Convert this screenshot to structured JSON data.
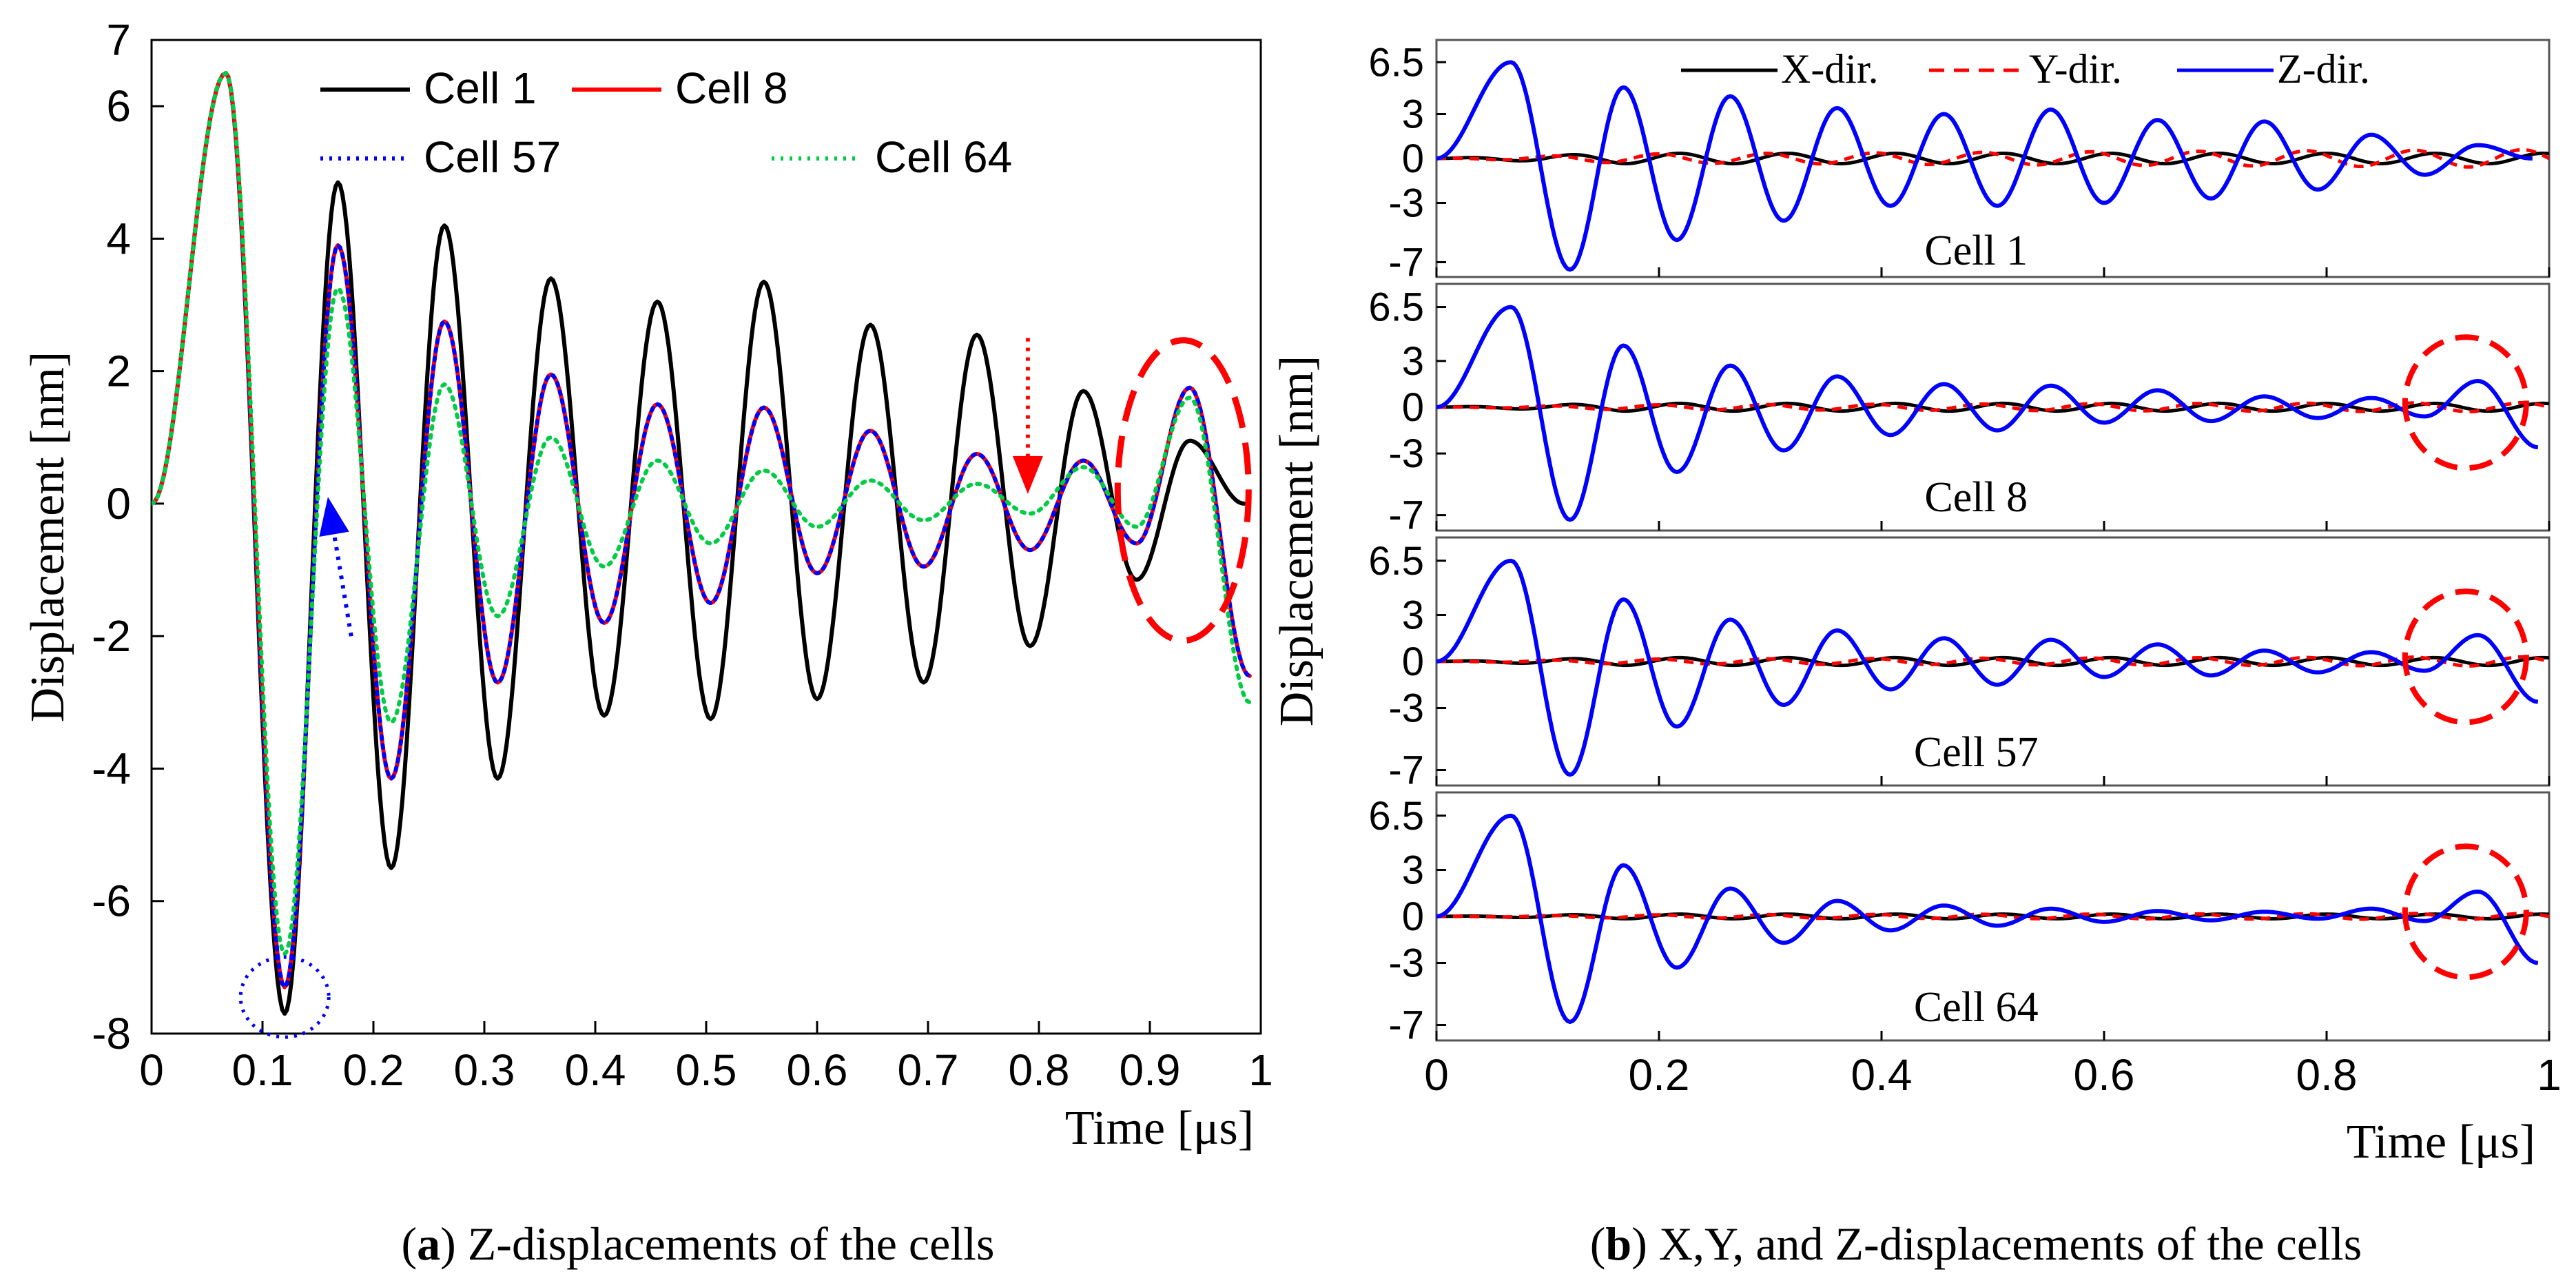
{
  "chart_data": [
    {
      "type": "line",
      "panel": "a",
      "caption_label": "a",
      "caption_text": ") Z-displacements of the cells",
      "xlabel": "Time [μs]",
      "ylabel": "Displacement [nm]",
      "xlim": [
        0,
        1
      ],
      "ylim": [
        -8,
        7
      ],
      "xticks": [
        "0",
        "0.1",
        "0.2",
        "0.3",
        "0.4",
        "0.5",
        "0.6",
        "0.7",
        "0.8",
        "0.9",
        "1"
      ],
      "yticks": [
        "-8",
        "-6",
        "-4",
        "-2",
        "0",
        "2",
        "4",
        "6",
        "7"
      ],
      "legend_position": "top",
      "series": [
        {
          "name": "Cell 1",
          "color": "#000000",
          "style": "solid",
          "peaks": [
            [
              0,
              0
            ],
            [
              0.067,
              6.5
            ],
            [
              0.12,
              -7.7
            ],
            [
              0.168,
              4.85
            ],
            [
              0.216,
              -5.5
            ],
            [
              0.264,
              4.2
            ],
            [
              0.312,
              -4.15
            ],
            [
              0.36,
              3.4
            ],
            [
              0.408,
              -3.2
            ],
            [
              0.456,
              3.05
            ],
            [
              0.504,
              -3.25
            ],
            [
              0.552,
              3.35
            ],
            [
              0.6,
              -2.95
            ],
            [
              0.648,
              2.7
            ],
            [
              0.696,
              -2.7
            ],
            [
              0.744,
              2.55
            ],
            [
              0.792,
              -2.15
            ],
            [
              0.84,
              1.7
            ],
            [
              0.888,
              -1.15
            ],
            [
              0.936,
              0.95
            ],
            [
              0.985,
              0.0
            ]
          ]
        },
        {
          "name": "Cell 8",
          "color": "#ff0000",
          "style": "solid",
          "peaks": [
            [
              0,
              0
            ],
            [
              0.067,
              6.5
            ],
            [
              0.12,
              -7.3
            ],
            [
              0.168,
              3.9
            ],
            [
              0.216,
              -4.15
            ],
            [
              0.264,
              2.75
            ],
            [
              0.312,
              -2.7
            ],
            [
              0.36,
              1.95
            ],
            [
              0.408,
              -1.8
            ],
            [
              0.456,
              1.5
            ],
            [
              0.504,
              -1.5
            ],
            [
              0.552,
              1.45
            ],
            [
              0.6,
              -1.05
            ],
            [
              0.648,
              1.1
            ],
            [
              0.696,
              -0.95
            ],
            [
              0.744,
              0.75
            ],
            [
              0.792,
              -0.7
            ],
            [
              0.84,
              0.65
            ],
            [
              0.888,
              -0.6
            ],
            [
              0.936,
              1.75
            ],
            [
              0.99,
              -2.6
            ]
          ]
        },
        {
          "name": "Cell 57",
          "color": "#0000ff",
          "style": "dotted",
          "peaks": [
            [
              0,
              0
            ],
            [
              0.067,
              6.5
            ],
            [
              0.12,
              -7.3
            ],
            [
              0.168,
              3.9
            ],
            [
              0.216,
              -4.15
            ],
            [
              0.264,
              2.75
            ],
            [
              0.312,
              -2.7
            ],
            [
              0.36,
              1.95
            ],
            [
              0.408,
              -1.8
            ],
            [
              0.456,
              1.5
            ],
            [
              0.504,
              -1.5
            ],
            [
              0.552,
              1.45
            ],
            [
              0.6,
              -1.05
            ],
            [
              0.648,
              1.1
            ],
            [
              0.696,
              -0.95
            ],
            [
              0.744,
              0.75
            ],
            [
              0.792,
              -0.7
            ],
            [
              0.84,
              0.65
            ],
            [
              0.888,
              -0.6
            ],
            [
              0.936,
              1.75
            ],
            [
              0.99,
              -2.6
            ]
          ]
        },
        {
          "name": "Cell 64",
          "color": "#00cc44",
          "style": "dotted",
          "peaks": [
            [
              0,
              0
            ],
            [
              0.067,
              6.5
            ],
            [
              0.12,
              -6.8
            ],
            [
              0.168,
              3.25
            ],
            [
              0.216,
              -3.3
            ],
            [
              0.264,
              1.8
            ],
            [
              0.312,
              -1.7
            ],
            [
              0.36,
              1.0
            ],
            [
              0.408,
              -0.95
            ],
            [
              0.456,
              0.65
            ],
            [
              0.504,
              -0.6
            ],
            [
              0.552,
              0.5
            ],
            [
              0.6,
              -0.35
            ],
            [
              0.648,
              0.35
            ],
            [
              0.696,
              -0.25
            ],
            [
              0.744,
              0.3
            ],
            [
              0.792,
              -0.15
            ],
            [
              0.84,
              0.55
            ],
            [
              0.888,
              -0.35
            ],
            [
              0.936,
              1.6
            ],
            [
              0.99,
              -3.0
            ]
          ]
        }
      ],
      "annotations": [
        {
          "type": "dotted-circle",
          "color": "#0000ff",
          "at": [
            0.12,
            -7.45
          ]
        },
        {
          "type": "dotted-arrow",
          "color": "#0000ff",
          "from": [
            0.18,
            -2.0
          ],
          "to": [
            0.16,
            0.0
          ]
        },
        {
          "type": "dotted-arrow",
          "color": "#ff0000",
          "from": [
            0.79,
            2.5
          ],
          "to": [
            0.79,
            0.25
          ]
        },
        {
          "type": "dashed-ellipse",
          "color": "#ff0000",
          "at": [
            0.93,
            0.2
          ]
        }
      ]
    },
    {
      "type": "line",
      "panel": "b",
      "caption_label": "b",
      "caption_text": ") X,Y, and Z-displacements of the cells",
      "xlabel": "Time [μs]",
      "ylabel": "Displacement [nm]",
      "xlim": [
        0,
        1
      ],
      "ylim": [
        -8,
        8
      ],
      "xticks": [
        "0",
        "0.2",
        "0.4",
        "0.6",
        "0.8",
        "1"
      ],
      "yticks": [
        "6.5",
        "3",
        "0",
        "-3",
        "-7"
      ],
      "legend": [
        {
          "name": "X-dir.",
          "color": "#000000",
          "style": "solid"
        },
        {
          "name": "Y-dir.",
          "color": "#ff0000",
          "style": "dashed"
        },
        {
          "name": "Z-dir.",
          "color": "#0000ff",
          "style": "solid"
        }
      ],
      "subplots": [
        {
          "label": "Cell 1",
          "z_peaks": [
            [
              0,
              0
            ],
            [
              0.067,
              6.5
            ],
            [
              0.12,
              -7.5
            ],
            [
              0.168,
              4.8
            ],
            [
              0.216,
              -5.5
            ],
            [
              0.264,
              4.2
            ],
            [
              0.312,
              -4.2
            ],
            [
              0.36,
              3.4
            ],
            [
              0.408,
              -3.2
            ],
            [
              0.456,
              3.0
            ],
            [
              0.504,
              -3.2
            ],
            [
              0.552,
              3.3
            ],
            [
              0.6,
              -3.0
            ],
            [
              0.648,
              2.6
            ],
            [
              0.696,
              -2.7
            ],
            [
              0.744,
              2.5
            ],
            [
              0.792,
              -2.1
            ],
            [
              0.84,
              1.6
            ],
            [
              0.888,
              -1.1
            ],
            [
              0.936,
              0.9
            ],
            [
              0.985,
              0.0
            ]
          ],
          "x_amp": 0.35,
          "y_amp": 0.6,
          "circle": false
        },
        {
          "label": "Cell 8",
          "z_peaks": [
            [
              0,
              0
            ],
            [
              0.067,
              6.5
            ],
            [
              0.12,
              -7.3
            ],
            [
              0.168,
              4.0
            ],
            [
              0.216,
              -4.2
            ],
            [
              0.264,
              2.7
            ],
            [
              0.312,
              -2.8
            ],
            [
              0.36,
              2.0
            ],
            [
              0.408,
              -1.8
            ],
            [
              0.456,
              1.5
            ],
            [
              0.504,
              -1.5
            ],
            [
              0.552,
              1.4
            ],
            [
              0.6,
              -1.0
            ],
            [
              0.648,
              1.1
            ],
            [
              0.696,
              -0.9
            ],
            [
              0.744,
              0.7
            ],
            [
              0.792,
              -0.7
            ],
            [
              0.84,
              0.6
            ],
            [
              0.888,
              -0.6
            ],
            [
              0.936,
              1.7
            ],
            [
              0.99,
              -2.6
            ]
          ],
          "x_amp": 0.25,
          "y_amp": 0.3,
          "circle": true
        },
        {
          "label": "Cell 57",
          "z_peaks": [
            [
              0,
              0
            ],
            [
              0.067,
              6.5
            ],
            [
              0.12,
              -7.3
            ],
            [
              0.168,
              4.0
            ],
            [
              0.216,
              -4.2
            ],
            [
              0.264,
              2.7
            ],
            [
              0.312,
              -2.8
            ],
            [
              0.36,
              2.0
            ],
            [
              0.408,
              -1.8
            ],
            [
              0.456,
              1.5
            ],
            [
              0.504,
              -1.5
            ],
            [
              0.552,
              1.4
            ],
            [
              0.6,
              -1.0
            ],
            [
              0.648,
              1.1
            ],
            [
              0.696,
              -0.9
            ],
            [
              0.744,
              0.7
            ],
            [
              0.792,
              -0.7
            ],
            [
              0.84,
              0.6
            ],
            [
              0.888,
              -0.6
            ],
            [
              0.936,
              1.7
            ],
            [
              0.99,
              -2.6
            ]
          ],
          "x_amp": 0.25,
          "y_amp": 0.3,
          "circle": true
        },
        {
          "label": "Cell 64",
          "z_peaks": [
            [
              0,
              0
            ],
            [
              0.067,
              6.5
            ],
            [
              0.12,
              -6.8
            ],
            [
              0.168,
              3.3
            ],
            [
              0.216,
              -3.3
            ],
            [
              0.264,
              1.8
            ],
            [
              0.312,
              -1.7
            ],
            [
              0.36,
              1.0
            ],
            [
              0.408,
              -0.9
            ],
            [
              0.456,
              0.7
            ],
            [
              0.504,
              -0.6
            ],
            [
              0.552,
              0.5
            ],
            [
              0.6,
              -0.35
            ],
            [
              0.648,
              0.35
            ],
            [
              0.696,
              -0.25
            ],
            [
              0.744,
              0.3
            ],
            [
              0.792,
              -0.15
            ],
            [
              0.84,
              0.5
            ],
            [
              0.888,
              -0.3
            ],
            [
              0.936,
              1.6
            ],
            [
              0.99,
              -3.0
            ]
          ],
          "x_amp": 0.15,
          "y_amp": 0.2,
          "circle": true
        }
      ]
    }
  ]
}
